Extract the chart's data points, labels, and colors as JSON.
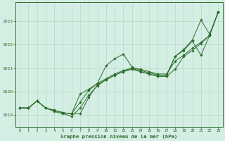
{
  "title": "Graphe pression niveau de la mer (hPa)",
  "xlim": [
    -0.5,
    23.5
  ],
  "ylim": [
    1018.5,
    1023.8
  ],
  "yticks": [
    1019,
    1020,
    1021,
    1022,
    1023
  ],
  "xticks": [
    0,
    1,
    2,
    3,
    4,
    5,
    6,
    7,
    8,
    9,
    10,
    11,
    12,
    13,
    14,
    15,
    16,
    17,
    18,
    19,
    20,
    21,
    22,
    23
  ],
  "bg_color": "#d4eee4",
  "line_color": "#2d6e2d",
  "grid_color": "#b8d8c8",
  "line1": [
    1019.3,
    1019.3,
    1019.6,
    1019.3,
    1019.2,
    1019.1,
    1019.05,
    1019.9,
    1020.1,
    1020.35,
    1020.55,
    1020.75,
    1020.9,
    1021.0,
    1020.95,
    1020.85,
    1020.75,
    1020.75,
    1021.3,
    1021.55,
    1021.85,
    1022.1,
    1022.4,
    1023.4
  ],
  "line2": [
    1019.3,
    1019.3,
    1019.6,
    1019.3,
    1019.2,
    1019.1,
    1019.05,
    1019.55,
    1020.05,
    1020.35,
    1021.1,
    1021.4,
    1021.6,
    1021.05,
    1020.9,
    1020.8,
    1020.7,
    1020.7,
    1021.5,
    1021.8,
    1022.2,
    1023.05,
    1022.45,
    1023.4
  ],
  "line3": [
    1019.3,
    1019.3,
    1019.6,
    1019.3,
    1019.15,
    1019.05,
    1018.95,
    1019.3,
    1019.85,
    1020.25,
    1020.5,
    1020.7,
    1020.85,
    1020.95,
    1020.85,
    1020.75,
    1020.65,
    1020.65,
    1020.95,
    1021.5,
    1021.75,
    1022.05,
    1022.4,
    1023.4
  ],
  "line4": [
    1019.3,
    1019.3,
    1019.6,
    1019.3,
    1019.2,
    1019.1,
    1019.05,
    1019.05,
    1019.75,
    1020.3,
    1020.5,
    1020.7,
    1020.85,
    1021.0,
    1020.85,
    1020.75,
    1020.65,
    1020.65,
    1021.5,
    1021.75,
    1022.15,
    1021.55,
    1022.4,
    1023.4
  ]
}
